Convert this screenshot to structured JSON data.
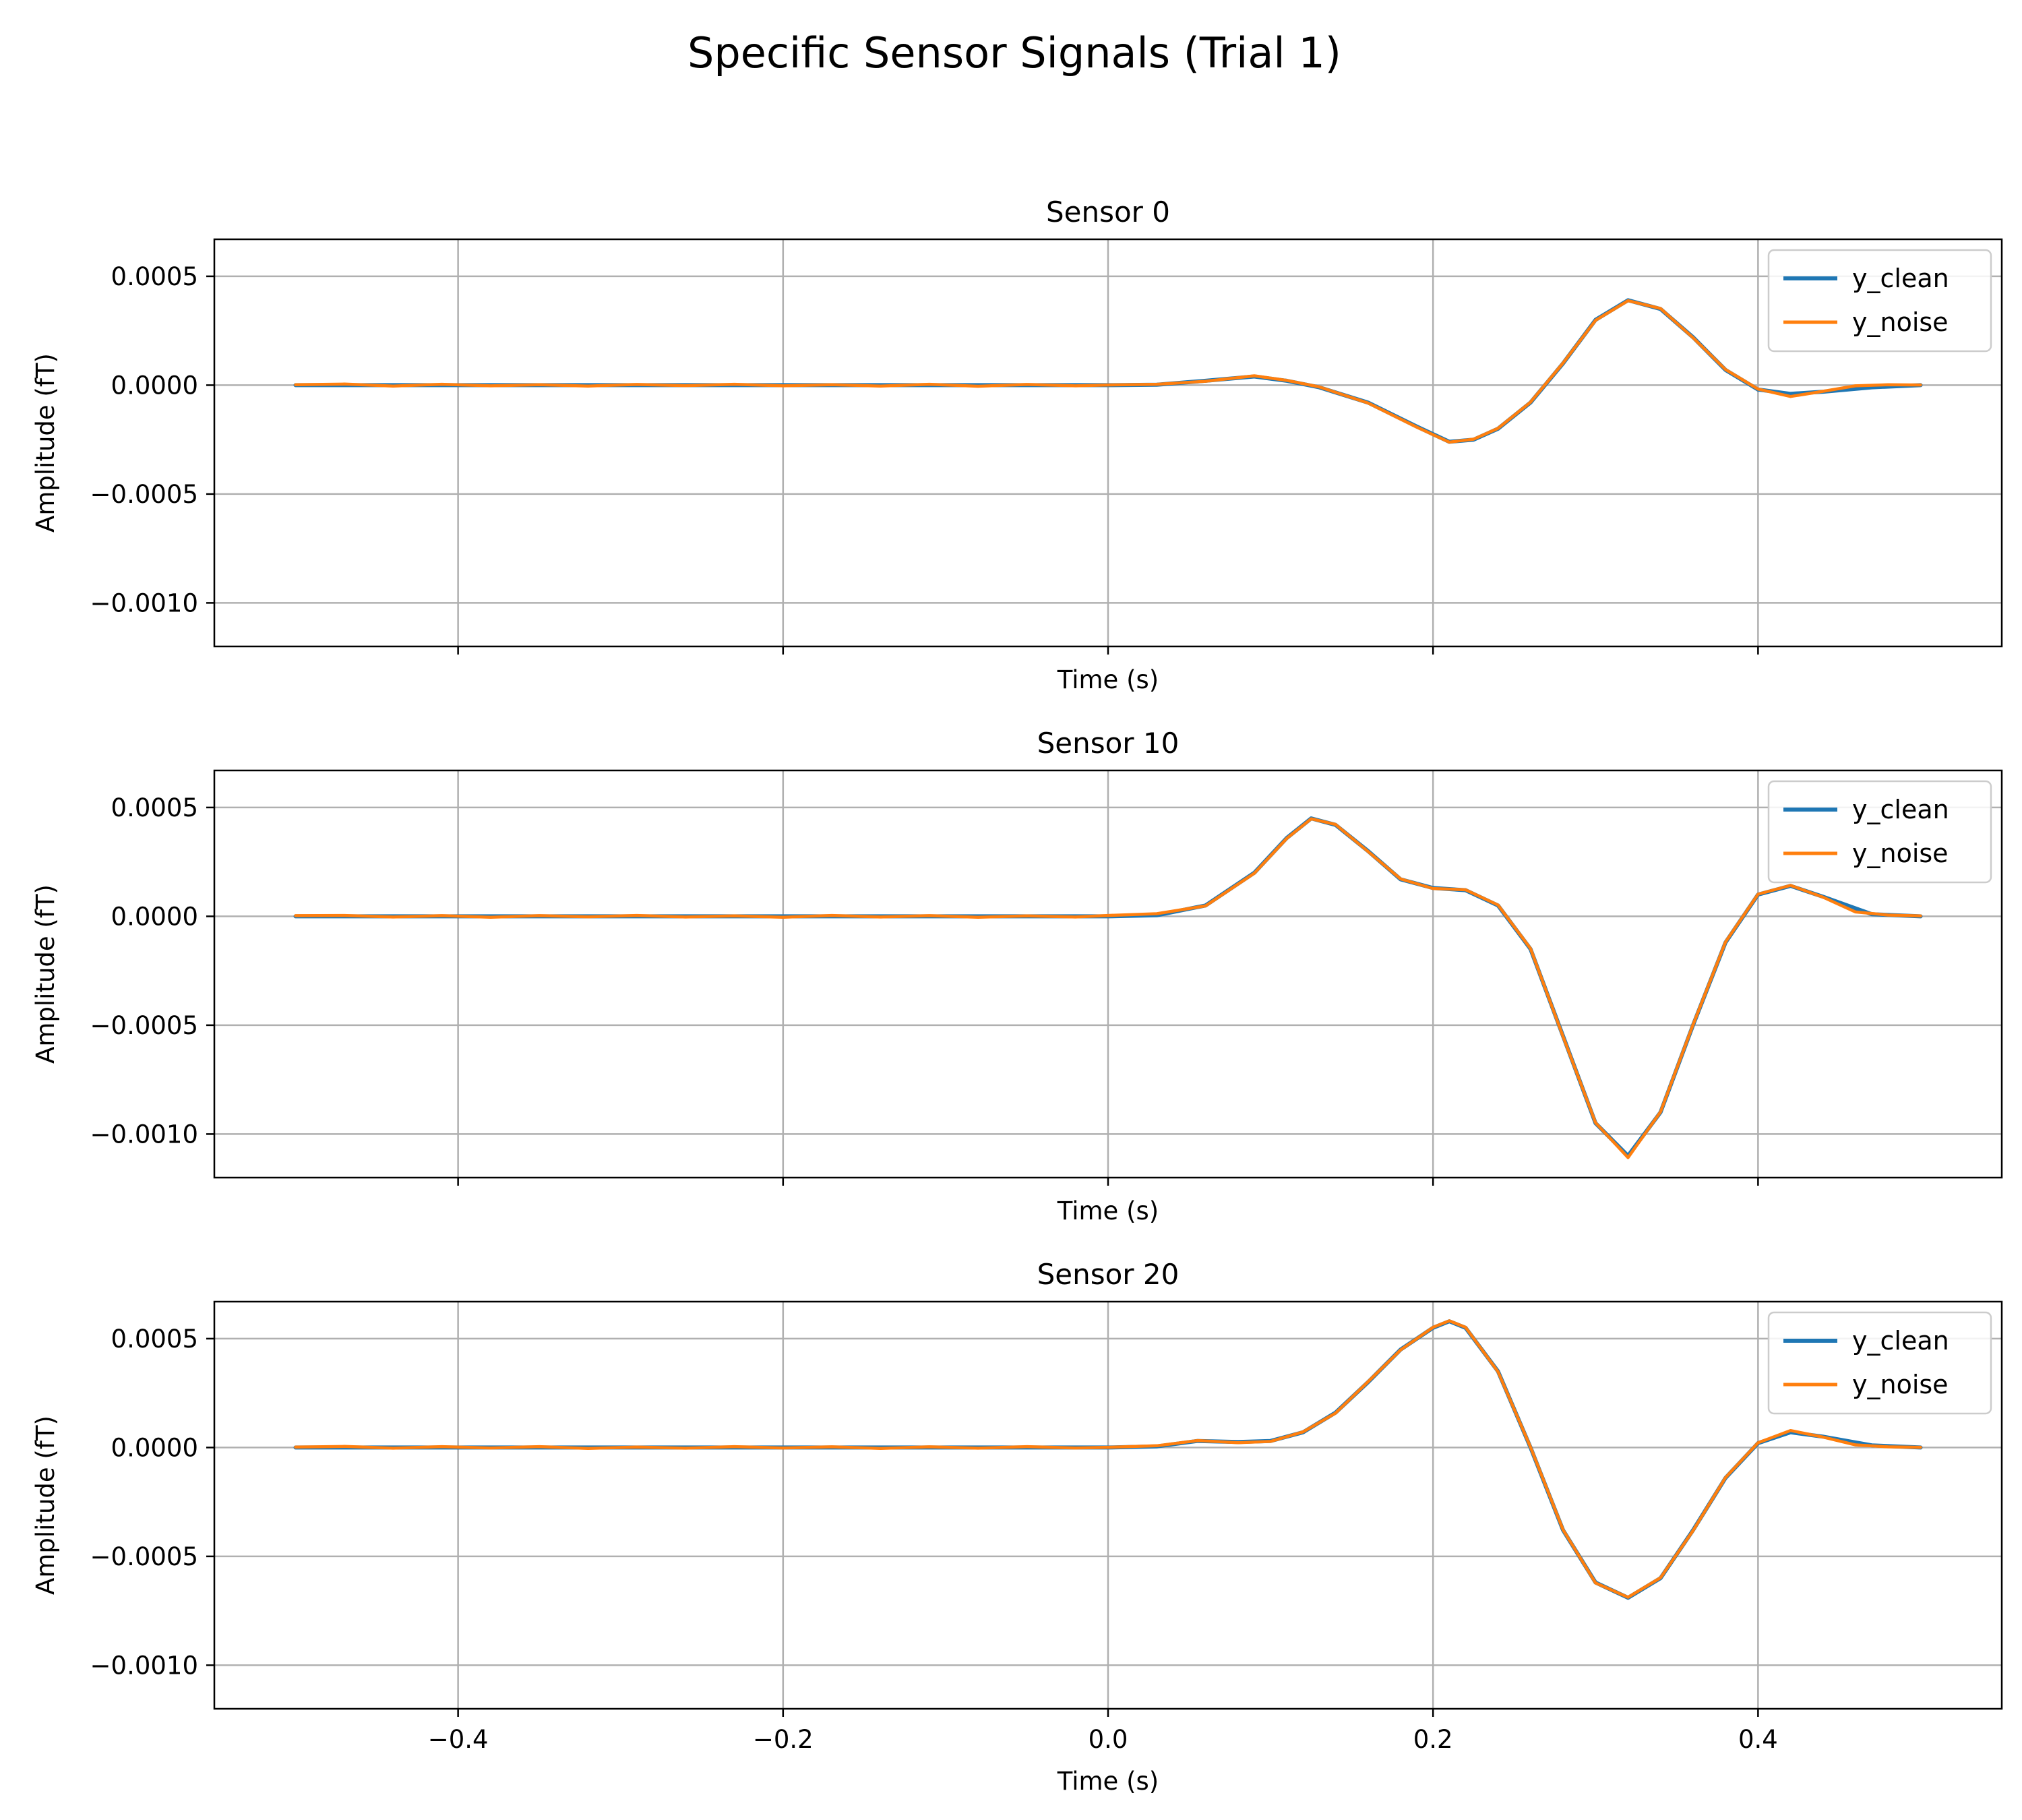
{
  "chart_data": {
    "type": "line",
    "title": "Specific Sensor Signals (Trial 1)",
    "xlabel": "Time (s)",
    "ylabel": "Amplitude  (fT)",
    "xlim": [
      -0.55,
      0.55
    ],
    "ylim": [
      -0.0012,
      0.00067
    ],
    "xticks": [
      -0.4,
      -0.2,
      0.0,
      0.2,
      0.4
    ],
    "xtick_labels": [
      "−0.4",
      "−0.2",
      "0.0",
      "0.2",
      "0.4"
    ],
    "yticks": [
      0.0005,
      0.0,
      -0.0005,
      -0.001
    ],
    "ytick_labels": [
      "0.0005",
      "0.0000",
      "−0.0005",
      "−0.0010"
    ],
    "grid": true,
    "legend": {
      "placement": "top-right",
      "entries": [
        "y_clean",
        "y_noise"
      ]
    },
    "colors": {
      "y_clean": "#1f77b4",
      "y_noise": "#ff7f0e",
      "grid": "#b0b0b0"
    },
    "subplots": [
      {
        "title": "Sensor 0",
        "series": [
          {
            "name": "y_clean",
            "points": [
              [
                -0.5,
                0
              ],
              [
                0.0,
                0
              ],
              [
                0.03,
                2e-06
              ],
              [
                0.06,
                2e-05
              ],
              [
                0.09,
                4e-05
              ],
              [
                0.11,
                2e-05
              ],
              [
                0.13,
                -1e-05
              ],
              [
                0.16,
                -8e-05
              ],
              [
                0.19,
                -0.00019
              ],
              [
                0.21,
                -0.00026
              ],
              [
                0.225,
                -0.00025
              ],
              [
                0.24,
                -0.0002
              ],
              [
                0.26,
                -8e-05
              ],
              [
                0.28,
                0.0001
              ],
              [
                0.3,
                0.0003
              ],
              [
                0.32,
                0.00039
              ],
              [
                0.34,
                0.00035
              ],
              [
                0.36,
                0.00022
              ],
              [
                0.38,
                7e-05
              ],
              [
                0.4,
                -2e-05
              ],
              [
                0.42,
                -4e-05
              ],
              [
                0.44,
                -3e-05
              ],
              [
                0.47,
                -1e-05
              ],
              [
                0.5,
                0
              ]
            ]
          },
          {
            "name": "y_noise",
            "points": [
              [
                -0.5,
                2e-06
              ],
              [
                -0.47,
                5e-06
              ],
              [
                -0.44,
                -4e-06
              ],
              [
                -0.41,
                4e-06
              ],
              [
                -0.38,
                -3e-06
              ],
              [
                -0.35,
                2e-06
              ],
              [
                -0.32,
                -4e-06
              ],
              [
                -0.29,
                3e-06
              ],
              [
                -0.26,
                -2e-06
              ],
              [
                -0.23,
                4e-06
              ],
              [
                -0.2,
                -3e-06
              ],
              [
                -0.17,
                2e-06
              ],
              [
                -0.14,
                -4e-06
              ],
              [
                -0.11,
                4e-06
              ],
              [
                -0.08,
                -5e-06
              ],
              [
                -0.05,
                3e-06
              ],
              [
                -0.02,
                -3e-06
              ],
              [
                0.0,
                1e-06
              ],
              [
                0.03,
                4e-06
              ],
              [
                0.06,
                1.8e-05
              ],
              [
                0.09,
                4.3e-05
              ],
              [
                0.11,
                2.2e-05
              ],
              [
                0.13,
                -8e-06
              ],
              [
                0.16,
                -8.2e-05
              ],
              [
                0.19,
                -0.000193
              ],
              [
                0.21,
                -0.000262
              ],
              [
                0.225,
                -0.000248
              ],
              [
                0.24,
                -0.000198
              ],
              [
                0.26,
                -7.8e-05
              ],
              [
                0.28,
                0.000102
              ],
              [
                0.3,
                0.000298
              ],
              [
                0.32,
                0.000388
              ],
              [
                0.34,
                0.000352
              ],
              [
                0.36,
                0.000218
              ],
              [
                0.38,
                7.2e-05
              ],
              [
                0.4,
                -1.8e-05
              ],
              [
                0.42,
                -5.2e-05
              ],
              [
                0.44,
                -2.8e-05
              ],
              [
                0.46,
                -3e-06
              ],
              [
                0.48,
                2e-06
              ],
              [
                0.5,
                1e-06
              ]
            ]
          }
        ]
      },
      {
        "title": "Sensor 10",
        "series": [
          {
            "name": "y_clean",
            "points": [
              [
                -0.5,
                0
              ],
              [
                0.0,
                0
              ],
              [
                0.03,
                5e-06
              ],
              [
                0.06,
                5e-05
              ],
              [
                0.09,
                0.0002
              ],
              [
                0.11,
                0.00036
              ],
              [
                0.125,
                0.00045
              ],
              [
                0.14,
                0.00042
              ],
              [
                0.16,
                0.0003
              ],
              [
                0.18,
                0.00017
              ],
              [
                0.2,
                0.00013
              ],
              [
                0.22,
                0.00012
              ],
              [
                0.24,
                5e-05
              ],
              [
                0.26,
                -0.00015
              ],
              [
                0.28,
                -0.00055
              ],
              [
                0.3,
                -0.00095
              ],
              [
                0.32,
                -0.0011
              ],
              [
                0.34,
                -0.0009
              ],
              [
                0.36,
                -0.0005
              ],
              [
                0.38,
                -0.00012
              ],
              [
                0.4,
                0.0001
              ],
              [
                0.42,
                0.00014
              ],
              [
                0.44,
                9e-05
              ],
              [
                0.47,
                1e-05
              ],
              [
                0.5,
                0
              ]
            ]
          },
          {
            "name": "y_noise",
            "points": [
              [
                -0.5,
                3e-06
              ],
              [
                -0.47,
                4e-06
              ],
              [
                -0.44,
                -3e-06
              ],
              [
                -0.41,
                3e-06
              ],
              [
                -0.38,
                -4e-06
              ],
              [
                -0.35,
                3e-06
              ],
              [
                -0.32,
                -2e-06
              ],
              [
                -0.29,
                4e-06
              ],
              [
                -0.26,
                -3e-06
              ],
              [
                -0.23,
                2e-06
              ],
              [
                -0.2,
                -4e-06
              ],
              [
                -0.17,
                4e-06
              ],
              [
                -0.14,
                -3e-06
              ],
              [
                -0.11,
                3e-06
              ],
              [
                -0.08,
                -4e-06
              ],
              [
                -0.05,
                2e-06
              ],
              [
                -0.02,
                -3e-06
              ],
              [
                0.0,
                4e-06
              ],
              [
                0.03,
                1.2e-05
              ],
              [
                0.06,
                4.8e-05
              ],
              [
                0.09,
                0.000198
              ],
              [
                0.11,
                0.000358
              ],
              [
                0.125,
                0.000448
              ],
              [
                0.14,
                0.000422
              ],
              [
                0.16,
                0.000298
              ],
              [
                0.18,
                0.000172
              ],
              [
                0.2,
                0.000128
              ],
              [
                0.22,
                0.000122
              ],
              [
                0.24,
                5.2e-05
              ],
              [
                0.26,
                -0.000148
              ],
              [
                0.28,
                -0.000552
              ],
              [
                0.3,
                -0.000948
              ],
              [
                0.32,
                -0.001108
              ],
              [
                0.34,
                -0.000898
              ],
              [
                0.36,
                -0.000498
              ],
              [
                0.38,
                -0.000118
              ],
              [
                0.4,
                0.000102
              ],
              [
                0.42,
                0.000142
              ],
              [
                0.44,
                8.8e-05
              ],
              [
                0.46,
                2e-05
              ],
              [
                0.48,
                6e-06
              ],
              [
                0.5,
                2e-06
              ]
            ]
          }
        ]
      },
      {
        "title": "Sensor 20",
        "series": [
          {
            "name": "y_clean",
            "points": [
              [
                -0.5,
                0
              ],
              [
                0.0,
                0
              ],
              [
                0.03,
                5e-06
              ],
              [
                0.055,
                3e-05
              ],
              [
                0.08,
                2.5e-05
              ],
              [
                0.1,
                3e-05
              ],
              [
                0.12,
                7e-05
              ],
              [
                0.14,
                0.00016
              ],
              [
                0.16,
                0.0003
              ],
              [
                0.18,
                0.00045
              ],
              [
                0.2,
                0.00055
              ],
              [
                0.21,
                0.00058
              ],
              [
                0.22,
                0.00055
              ],
              [
                0.24,
                0.00035
              ],
              [
                0.26,
                0.0
              ],
              [
                0.28,
                -0.00038
              ],
              [
                0.3,
                -0.00062
              ],
              [
                0.32,
                -0.00069
              ],
              [
                0.34,
                -0.0006
              ],
              [
                0.36,
                -0.00038
              ],
              [
                0.38,
                -0.00014
              ],
              [
                0.4,
                2e-05
              ],
              [
                0.42,
                7e-05
              ],
              [
                0.44,
                5e-05
              ],
              [
                0.47,
                1e-05
              ],
              [
                0.5,
                0
              ]
            ]
          },
          {
            "name": "y_noise",
            "points": [
              [
                -0.5,
                2e-06
              ],
              [
                -0.47,
                5e-06
              ],
              [
                -0.44,
                -3e-06
              ],
              [
                -0.41,
                4e-06
              ],
              [
                -0.38,
                -2e-06
              ],
              [
                -0.35,
                4e-06
              ],
              [
                -0.32,
                -4e-06
              ],
              [
                -0.29,
                2e-06
              ],
              [
                -0.26,
                -3e-06
              ],
              [
                -0.23,
                4e-06
              ],
              [
                -0.2,
                -2e-06
              ],
              [
                -0.17,
                3e-06
              ],
              [
                -0.14,
                -4e-06
              ],
              [
                -0.11,
                3e-06
              ],
              [
                -0.08,
                -3e-06
              ],
              [
                -0.05,
                4e-06
              ],
              [
                -0.02,
                -2e-06
              ],
              [
                0.0,
                1e-06
              ],
              [
                0.03,
                8e-06
              ],
              [
                0.055,
                3.2e-05
              ],
              [
                0.08,
                2.2e-05
              ],
              [
                0.1,
                2.8e-05
              ],
              [
                0.12,
                7.2e-05
              ],
              [
                0.14,
                0.000158
              ],
              [
                0.16,
                0.000302
              ],
              [
                0.18,
                0.000448
              ],
              [
                0.2,
                0.000552
              ],
              [
                0.21,
                0.000582
              ],
              [
                0.22,
                0.000552
              ],
              [
                0.24,
                0.000348
              ],
              [
                0.26,
                2e-06
              ],
              [
                0.28,
                -0.000378
              ],
              [
                0.3,
                -0.000622
              ],
              [
                0.32,
                -0.000688
              ],
              [
                0.34,
                -0.000598
              ],
              [
                0.36,
                -0.000382
              ],
              [
                0.38,
                -0.000138
              ],
              [
                0.4,
                2.2e-05
              ],
              [
                0.42,
                7.8e-05
              ],
              [
                0.44,
                4.8e-05
              ],
              [
                0.46,
                1.2e-05
              ],
              [
                0.48,
                3e-06
              ],
              [
                0.5,
                1e-06
              ]
            ]
          }
        ]
      }
    ]
  }
}
